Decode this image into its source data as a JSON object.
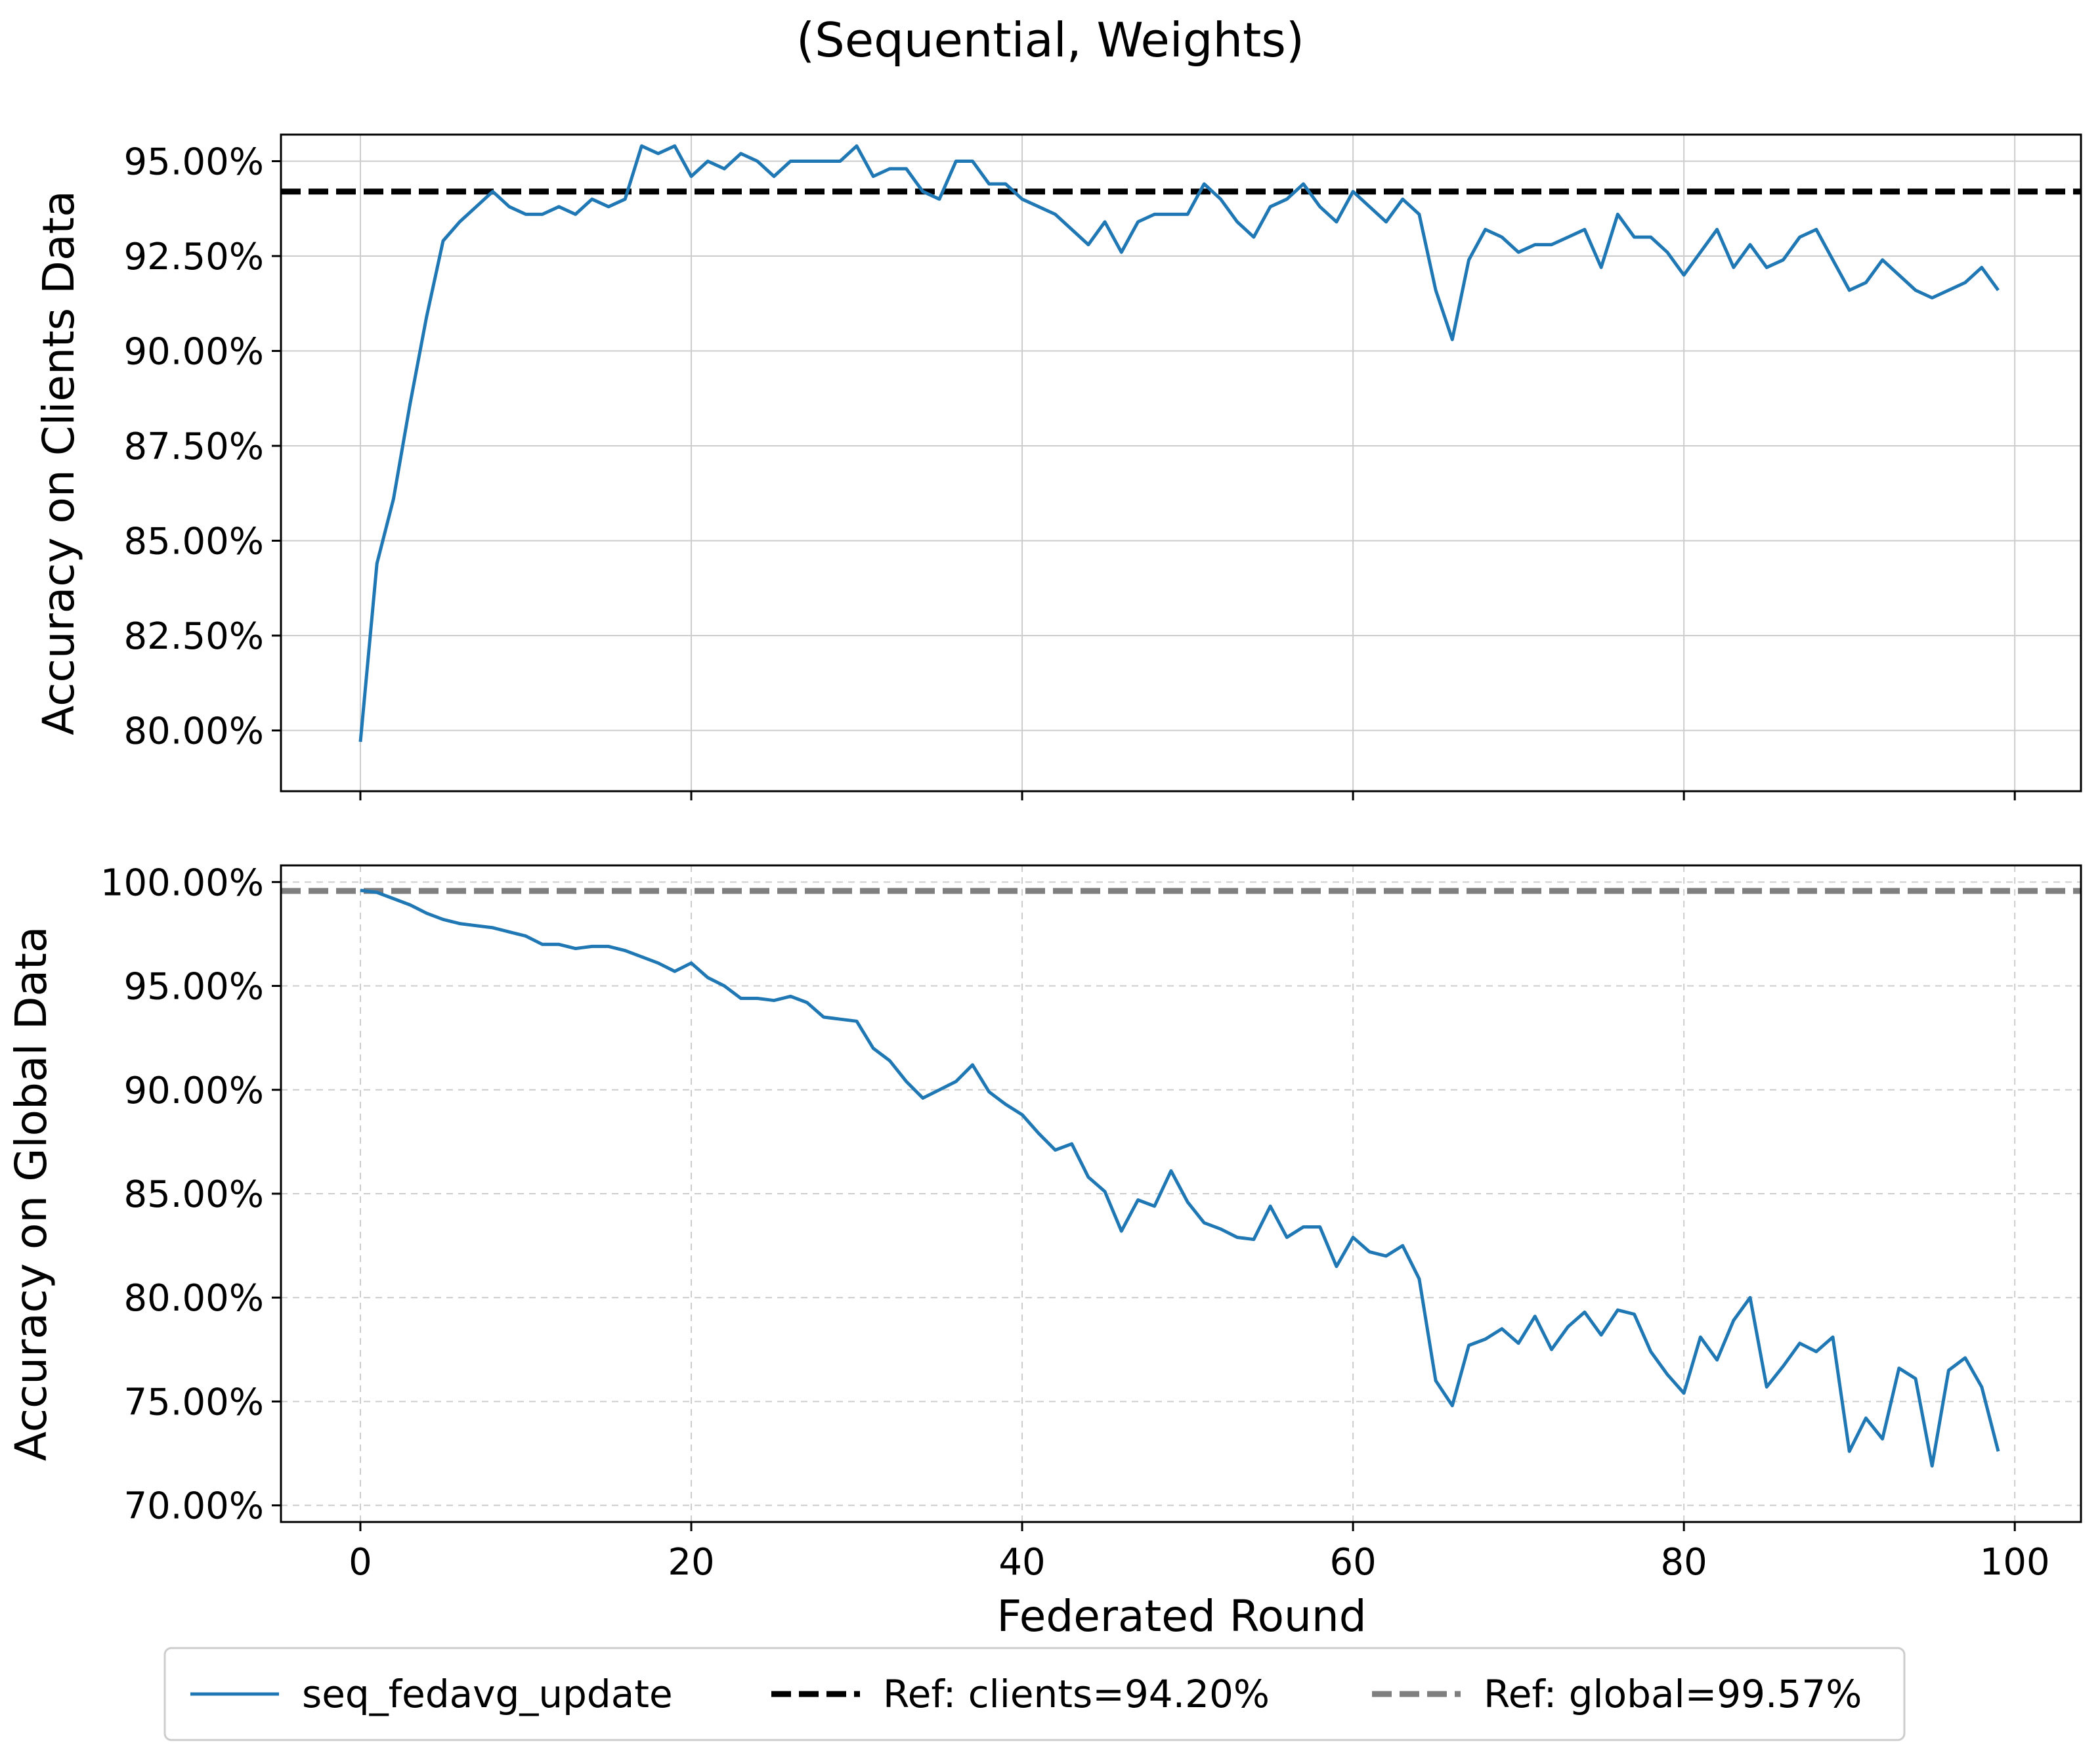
{
  "chart_data": {
    "type": "line",
    "title": "(Sequential, Weights)",
    "xlabel": "Federated Round",
    "x": [
      0,
      1,
      2,
      3,
      4,
      5,
      6,
      7,
      8,
      9,
      10,
      11,
      12,
      13,
      14,
      15,
      16,
      17,
      18,
      19,
      20,
      21,
      22,
      23,
      24,
      25,
      26,
      27,
      28,
      29,
      30,
      31,
      32,
      33,
      34,
      35,
      36,
      37,
      38,
      39,
      40,
      41,
      42,
      43,
      44,
      45,
      46,
      47,
      48,
      49,
      50,
      51,
      52,
      53,
      54,
      55,
      56,
      57,
      58,
      59,
      60,
      61,
      62,
      63,
      64,
      65,
      66,
      67,
      68,
      69,
      70,
      71,
      72,
      73,
      74,
      75,
      76,
      77,
      78,
      79,
      80,
      81,
      82,
      83,
      84,
      85,
      86,
      87,
      88,
      89,
      90,
      91,
      92,
      93,
      94,
      95,
      96,
      97,
      98,
      99
    ],
    "xlim": [
      -4.8,
      104.0
    ],
    "xticks": [
      0,
      20,
      40,
      60,
      80,
      100
    ],
    "xtick_labels": [
      "0",
      "20",
      "40",
      "60",
      "80",
      "100"
    ],
    "panels": [
      {
        "ylabel": "Accuracy on Clients Data",
        "ylim": [
          78.4,
          95.7
        ],
        "yticks": [
          80.0,
          82.5,
          85.0,
          87.5,
          90.0,
          92.5,
          95.0
        ],
        "ytick_labels": [
          "80.00%",
          "82.50%",
          "85.00%",
          "87.50%",
          "90.00%",
          "92.50%",
          "95.00%"
        ],
        "grid": "solid",
        "series": [
          {
            "name": "seq_fedavg_update",
            "color": "#1f77b4",
            "values": [
              79.7,
              84.4,
              86.1,
              88.6,
              90.9,
              92.9,
              93.4,
              93.8,
              94.2,
              93.8,
              93.6,
              93.6,
              93.8,
              93.6,
              94.0,
              93.8,
              94.0,
              95.4,
              95.2,
              95.4,
              94.6,
              95.0,
              94.8,
              95.2,
              95.0,
              94.6,
              95.0,
              95.0,
              95.0,
              95.0,
              95.4,
              94.6,
              94.8,
              94.8,
              94.2,
              94.0,
              95.0,
              95.0,
              94.4,
              94.4,
              94.0,
              93.8,
              93.6,
              93.2,
              92.8,
              93.4,
              92.6,
              93.4,
              93.6,
              93.6,
              93.6,
              94.4,
              94.0,
              93.4,
              93.0,
              93.8,
              94.0,
              94.4,
              93.8,
              93.4,
              94.2,
              93.8,
              93.4,
              94.0,
              93.6,
              91.6,
              90.3,
              92.4,
              93.2,
              93.0,
              92.6,
              92.8,
              92.8,
              93.0,
              93.2,
              92.2,
              93.6,
              93.0,
              93.0,
              92.6,
              92.0,
              92.6,
              93.2,
              92.2,
              92.8,
              92.2,
              92.4,
              93.0,
              93.2,
              92.4,
              91.6,
              91.8,
              92.4,
              92.0,
              91.6,
              91.4,
              91.6,
              91.8,
              92.2,
              91.6
            ]
          }
        ],
        "reference": {
          "name": "Ref: clients=94.20%",
          "value": 94.2,
          "color": "#000000"
        }
      },
      {
        "ylabel": "Accuracy on Global Data",
        "ylim": [
          69.2,
          100.8
        ],
        "yticks": [
          70.0,
          75.0,
          80.0,
          85.0,
          90.0,
          95.0,
          100.0
        ],
        "ytick_labels": [
          "70.00%",
          "75.00%",
          "80.00%",
          "85.00%",
          "90.00%",
          "95.00%",
          "100.00%"
        ],
        "grid": "dashed",
        "series": [
          {
            "name": "seq_fedavg_update",
            "color": "#1f77b4",
            "values": [
              99.6,
              99.5,
              99.2,
              98.9,
              98.5,
              98.2,
              98.0,
              97.9,
              97.8,
              97.6,
              97.4,
              97.0,
              97.0,
              96.8,
              96.9,
              96.9,
              96.7,
              96.4,
              96.1,
              95.7,
              96.1,
              95.4,
              95.0,
              94.4,
              94.4,
              94.3,
              94.5,
              94.2,
              93.5,
              93.4,
              93.3,
              92.0,
              91.4,
              90.4,
              89.6,
              90.0,
              90.4,
              91.2,
              89.9,
              89.3,
              88.8,
              87.9,
              87.1,
              87.4,
              85.8,
              85.1,
              83.2,
              84.7,
              84.4,
              86.1,
              84.6,
              83.6,
              83.3,
              82.9,
              82.8,
              84.4,
              82.9,
              83.4,
              83.4,
              81.5,
              82.9,
              82.2,
              82.0,
              82.5,
              80.9,
              76.0,
              74.8,
              77.7,
              78.0,
              78.5,
              77.8,
              79.1,
              77.5,
              78.6,
              79.3,
              78.2,
              79.4,
              79.2,
              77.4,
              76.3,
              75.4,
              78.1,
              77.0,
              78.9,
              80.0,
              75.7,
              76.7,
              77.8,
              77.4,
              78.1,
              72.6,
              74.2,
              73.2,
              76.6,
              76.1,
              71.9,
              76.5,
              77.1,
              75.7,
              72.6
            ]
          }
        ],
        "reference": {
          "name": "Ref: global=99.57%",
          "value": 99.57,
          "color": "#7f7f7f"
        }
      }
    ],
    "legend": {
      "placement": "bottom-center",
      "entries": [
        {
          "label": "seq_fedavg_update",
          "color": "#1f77b4",
          "style": "solid"
        },
        {
          "label": "Ref: clients=94.20%",
          "color": "#000000",
          "style": "dashed"
        },
        {
          "label": "Ref: global=99.57%",
          "color": "#7f7f7f",
          "style": "dashed"
        }
      ]
    }
  }
}
